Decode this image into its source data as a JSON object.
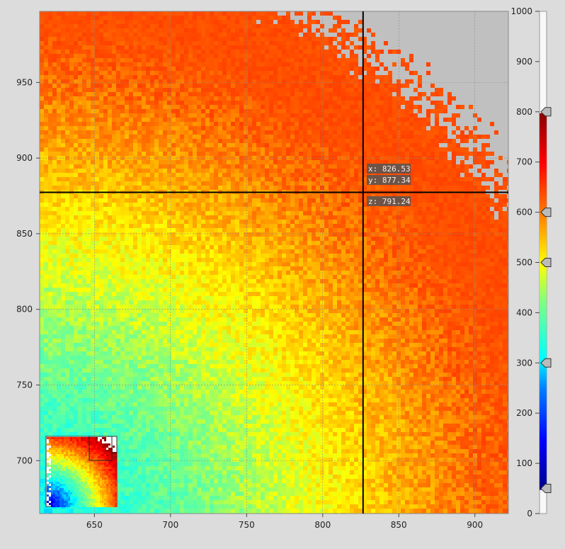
{
  "chart_data": {
    "type": "heatmap",
    "title": "",
    "xlabel": "",
    "ylabel": "",
    "xlim": [
      614,
      922
    ],
    "ylim": [
      665,
      997
    ],
    "x_ticks": [
      650,
      700,
      750,
      800,
      850,
      900
    ],
    "y_ticks": [
      700,
      750,
      800,
      850,
      900,
      950
    ],
    "grid": true,
    "crosshair": {
      "x": 826.53,
      "y": 877.34,
      "z": 791.24
    },
    "readout": {
      "x_label": "x: 826.53",
      "y_label": "y: 877.34",
      "z_label": "z: 791.24"
    },
    "colorbar": {
      "range": [
        0,
        1000
      ],
      "ticks": [
        0,
        100,
        200,
        300,
        400,
        500,
        600,
        700,
        800,
        900,
        1000
      ],
      "visible_range": [
        50,
        800
      ],
      "handles": [
        50,
        300,
        500,
        600,
        800
      ],
      "colormap": [
        "#00008b",
        "#0000ff",
        "#0080ff",
        "#00ffff",
        "#80ff80",
        "#ffff00",
        "#ff8000",
        "#ff0000",
        "#8b0000"
      ]
    },
    "inset": {
      "description_hidden": true
    },
    "colors": {
      "empty": "#c0c0c0",
      "background": "#dcdcdc"
    }
  }
}
